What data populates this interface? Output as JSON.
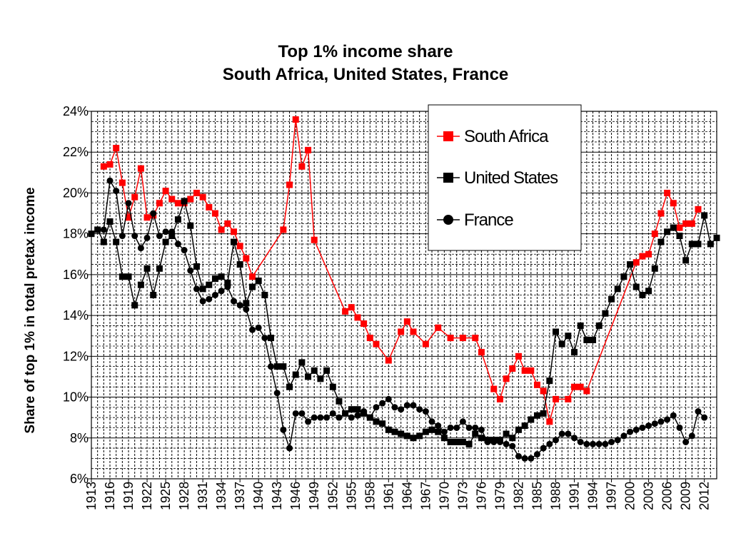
{
  "chart_data": {
    "type": "line",
    "title": [
      "Top 1% income share",
      "South Africa, United States, France"
    ],
    "ylabel": "Share  of top 1% in total pretax income",
    "xlabel": "",
    "ylim": [
      6,
      24
    ],
    "y_ticks": [
      6,
      8,
      10,
      12,
      14,
      16,
      18,
      20,
      22,
      24
    ],
    "y_tick_labels": [
      "6%",
      "8%",
      "10%",
      "12%",
      "14%",
      "16%",
      "18%",
      "20%",
      "22%",
      "24%"
    ],
    "xlim": [
      1913,
      2014
    ],
    "x_tick_labels": [
      "1913",
      "1916",
      "1919",
      "1922",
      "1925",
      "1928",
      "1931",
      "1934",
      "1937",
      "1940",
      "1943",
      "1946",
      "1949",
      "1952",
      "1955",
      "1958",
      "1961",
      "1964",
      "1967",
      "1970",
      "1973",
      "1976",
      "1979",
      "1982",
      "1985",
      "1988",
      "1991",
      "1994",
      "1997",
      "2000",
      "2003",
      "2006",
      "2009",
      "2012"
    ],
    "grid": true,
    "legend_position": "top-right",
    "series": [
      {
        "name": "South Africa",
        "color": "#ff0000",
        "marker": "square",
        "points": [
          [
            1915,
            21.3
          ],
          [
            1916,
            21.4
          ],
          [
            1917,
            22.2
          ],
          [
            1918,
            20.5
          ],
          [
            1919,
            18.8
          ],
          [
            1920,
            19.8
          ],
          [
            1921,
            21.2
          ],
          [
            1922,
            18.8
          ],
          [
            1923,
            18.9
          ],
          [
            1924,
            19.5
          ],
          [
            1925,
            20.1
          ],
          [
            1926,
            19.7
          ],
          [
            1927,
            19.5
          ],
          [
            1928,
            19.5
          ],
          [
            1929,
            19.7
          ],
          [
            1930,
            20.0
          ],
          [
            1931,
            19.8
          ],
          [
            1932,
            19.3
          ],
          [
            1933,
            19.0
          ],
          [
            1934,
            18.2
          ],
          [
            1935,
            18.5
          ],
          [
            1936,
            18.1
          ],
          [
            1937,
            17.4
          ],
          [
            1938,
            16.8
          ],
          [
            1939,
            15.9
          ],
          [
            1944,
            18.2
          ],
          [
            1945,
            20.4
          ],
          [
            1946,
            23.6
          ],
          [
            1947,
            21.3
          ],
          [
            1948,
            22.1
          ],
          [
            1949,
            17.7
          ],
          [
            1954,
            14.2
          ],
          [
            1955,
            14.4
          ],
          [
            1956,
            13.9
          ],
          [
            1957,
            13.6
          ],
          [
            1958,
            12.9
          ],
          [
            1959,
            12.6
          ],
          [
            1961,
            11.8
          ],
          [
            1963,
            13.2
          ],
          [
            1964,
            13.7
          ],
          [
            1965,
            13.2
          ],
          [
            1967,
            12.6
          ],
          [
            1969,
            13.4
          ],
          [
            1971,
            12.9
          ],
          [
            1973,
            12.9
          ],
          [
            1975,
            12.9
          ],
          [
            1976,
            12.2
          ],
          [
            1978,
            10.4
          ],
          [
            1979,
            9.9
          ],
          [
            1980,
            10.9
          ],
          [
            1981,
            11.4
          ],
          [
            1982,
            12.0
          ],
          [
            1983,
            11.3
          ],
          [
            1984,
            11.3
          ],
          [
            1985,
            10.6
          ],
          [
            1986,
            10.3
          ],
          [
            1987,
            8.8
          ],
          [
            1988,
            9.9
          ],
          [
            1990,
            9.9
          ],
          [
            1991,
            10.5
          ],
          [
            1992,
            10.5
          ],
          [
            1993,
            10.3
          ],
          [
            2001,
            16.6
          ],
          [
            2002,
            16.9
          ],
          [
            2003,
            17.0
          ],
          [
            2004,
            18.0
          ],
          [
            2005,
            19.0
          ],
          [
            2006,
            20.0
          ],
          [
            2007,
            19.5
          ],
          [
            2008,
            18.3
          ],
          [
            2009,
            18.5
          ],
          [
            2010,
            18.5
          ],
          [
            2011,
            19.2
          ]
        ]
      },
      {
        "name": "United States",
        "color": "#000000",
        "marker": "square",
        "points": [
          [
            1913,
            18.0
          ],
          [
            1914,
            18.2
          ],
          [
            1915,
            17.6
          ],
          [
            1916,
            18.6
          ],
          [
            1917,
            17.6
          ],
          [
            1918,
            15.9
          ],
          [
            1919,
            15.9
          ],
          [
            1920,
            14.5
          ],
          [
            1921,
            15.5
          ],
          [
            1922,
            16.3
          ],
          [
            1923,
            15.0
          ],
          [
            1924,
            16.3
          ],
          [
            1925,
            17.6
          ],
          [
            1926,
            17.9
          ],
          [
            1927,
            18.7
          ],
          [
            1928,
            19.6
          ],
          [
            1929,
            18.4
          ],
          [
            1930,
            16.4
          ],
          [
            1931,
            15.3
          ],
          [
            1932,
            15.5
          ],
          [
            1933,
            15.8
          ],
          [
            1934,
            15.9
          ],
          [
            1935,
            15.6
          ],
          [
            1936,
            17.6
          ],
          [
            1937,
            16.5
          ],
          [
            1938,
            14.6
          ],
          [
            1939,
            15.4
          ],
          [
            1940,
            15.7
          ],
          [
            1941,
            15.0
          ],
          [
            1942,
            12.9
          ],
          [
            1943,
            11.5
          ],
          [
            1944,
            11.5
          ],
          [
            1945,
            10.5
          ],
          [
            1946,
            11.1
          ],
          [
            1947,
            11.7
          ],
          [
            1948,
            11.0
          ],
          [
            1949,
            11.3
          ],
          [
            1950,
            10.9
          ],
          [
            1951,
            11.3
          ],
          [
            1952,
            10.5
          ],
          [
            1953,
            9.8
          ],
          [
            1954,
            9.2
          ],
          [
            1955,
            9.4
          ],
          [
            1956,
            9.4
          ],
          [
            1957,
            9.2
          ],
          [
            1958,
            9.0
          ],
          [
            1959,
            8.8
          ],
          [
            1960,
            8.7
          ],
          [
            1961,
            8.4
          ],
          [
            1962,
            8.3
          ],
          [
            1963,
            8.2
          ],
          [
            1964,
            8.1
          ],
          [
            1965,
            8.0
          ],
          [
            1966,
            8.1
          ],
          [
            1967,
            8.3
          ],
          [
            1968,
            8.4
          ],
          [
            1969,
            8.3
          ],
          [
            1970,
            8.0
          ],
          [
            1971,
            7.8
          ],
          [
            1972,
            7.8
          ],
          [
            1973,
            7.8
          ],
          [
            1974,
            7.7
          ],
          [
            1975,
            8.2
          ],
          [
            1976,
            8.0
          ],
          [
            1977,
            7.9
          ],
          [
            1978,
            7.9
          ],
          [
            1979,
            7.9
          ],
          [
            1980,
            8.2
          ],
          [
            1981,
            8.0
          ],
          [
            1982,
            8.4
          ],
          [
            1983,
            8.6
          ],
          [
            1984,
            8.9
          ],
          [
            1985,
            9.1
          ],
          [
            1986,
            9.2
          ],
          [
            1987,
            10.8
          ],
          [
            1988,
            13.2
          ],
          [
            1989,
            12.6
          ],
          [
            1990,
            13.0
          ],
          [
            1991,
            12.2
          ],
          [
            1992,
            13.5
          ],
          [
            1993,
            12.8
          ],
          [
            1994,
            12.8
          ],
          [
            1995,
            13.5
          ],
          [
            1996,
            14.1
          ],
          [
            1997,
            14.8
          ],
          [
            1998,
            15.3
          ],
          [
            1999,
            15.9
          ],
          [
            2000,
            16.5
          ],
          [
            2001,
            15.4
          ],
          [
            2002,
            15.0
          ],
          [
            2003,
            15.2
          ],
          [
            2004,
            16.3
          ],
          [
            2005,
            17.6
          ],
          [
            2006,
            18.1
          ],
          [
            2007,
            18.3
          ],
          [
            2008,
            17.9
          ],
          [
            2009,
            16.7
          ],
          [
            2010,
            17.5
          ],
          [
            2011,
            17.5
          ],
          [
            2012,
            18.9
          ],
          [
            2013,
            17.5
          ],
          [
            2014,
            17.8
          ]
        ]
      },
      {
        "name": "France",
        "color": "#000000",
        "marker": "circle",
        "points": [
          [
            1915,
            18.2
          ],
          [
            1916,
            20.6
          ],
          [
            1917,
            20.1
          ],
          [
            1918,
            17.9
          ],
          [
            1919,
            19.5
          ],
          [
            1920,
            17.9
          ],
          [
            1921,
            17.3
          ],
          [
            1922,
            17.8
          ],
          [
            1923,
            19.0
          ],
          [
            1924,
            17.9
          ],
          [
            1925,
            18.1
          ],
          [
            1926,
            18.1
          ],
          [
            1927,
            17.5
          ],
          [
            1928,
            17.2
          ],
          [
            1929,
            16.2
          ],
          [
            1930,
            15.3
          ],
          [
            1931,
            14.7
          ],
          [
            1932,
            14.8
          ],
          [
            1933,
            15.0
          ],
          [
            1934,
            15.2
          ],
          [
            1935,
            15.4
          ],
          [
            1936,
            14.7
          ],
          [
            1937,
            14.5
          ],
          [
            1938,
            14.3
          ],
          [
            1939,
            13.3
          ],
          [
            1940,
            13.4
          ],
          [
            1941,
            12.9
          ],
          [
            1942,
            11.5
          ],
          [
            1943,
            10.2
          ],
          [
            1944,
            8.4
          ],
          [
            1945,
            7.5
          ],
          [
            1946,
            9.2
          ],
          [
            1947,
            9.2
          ],
          [
            1948,
            8.8
          ],
          [
            1949,
            9.0
          ],
          [
            1950,
            9.0
          ],
          [
            1951,
            9.0
          ],
          [
            1952,
            9.2
          ],
          [
            1953,
            9.0
          ],
          [
            1954,
            9.2
          ],
          [
            1955,
            9.0
          ],
          [
            1956,
            9.1
          ],
          [
            1957,
            9.3
          ],
          [
            1958,
            9.0
          ],
          [
            1959,
            9.5
          ],
          [
            1960,
            9.7
          ],
          [
            1961,
            9.9
          ],
          [
            1962,
            9.5
          ],
          [
            1963,
            9.4
          ],
          [
            1964,
            9.6
          ],
          [
            1965,
            9.6
          ],
          [
            1966,
            9.4
          ],
          [
            1967,
            9.3
          ],
          [
            1968,
            8.8
          ],
          [
            1969,
            8.6
          ],
          [
            1970,
            8.3
          ],
          [
            1971,
            8.5
          ],
          [
            1972,
            8.5
          ],
          [
            1973,
            8.8
          ],
          [
            1974,
            8.5
          ],
          [
            1975,
            8.5
          ],
          [
            1976,
            8.4
          ],
          [
            1977,
            7.8
          ],
          [
            1978,
            7.8
          ],
          [
            1979,
            7.8
          ],
          [
            1980,
            7.7
          ],
          [
            1981,
            7.6
          ],
          [
            1982,
            7.1
          ],
          [
            1983,
            7.0
          ],
          [
            1984,
            7.0
          ],
          [
            1985,
            7.2
          ],
          [
            1986,
            7.5
          ],
          [
            1987,
            7.7
          ],
          [
            1988,
            7.9
          ],
          [
            1989,
            8.2
          ],
          [
            1990,
            8.2
          ],
          [
            1991,
            8.0
          ],
          [
            1992,
            7.8
          ],
          [
            1993,
            7.7
          ],
          [
            1994,
            7.7
          ],
          [
            1995,
            7.7
          ],
          [
            1996,
            7.7
          ],
          [
            1997,
            7.8
          ],
          [
            1998,
            7.9
          ],
          [
            1999,
            8.1
          ],
          [
            2000,
            8.3
          ],
          [
            2001,
            8.4
          ],
          [
            2002,
            8.5
          ],
          [
            2003,
            8.6
          ],
          [
            2004,
            8.7
          ],
          [
            2005,
            8.8
          ],
          [
            2006,
            8.9
          ],
          [
            2007,
            9.1
          ],
          [
            2008,
            8.5
          ],
          [
            2009,
            7.8
          ],
          [
            2010,
            8.1
          ],
          [
            2011,
            9.3
          ],
          [
            2012,
            9.0
          ]
        ]
      }
    ]
  }
}
